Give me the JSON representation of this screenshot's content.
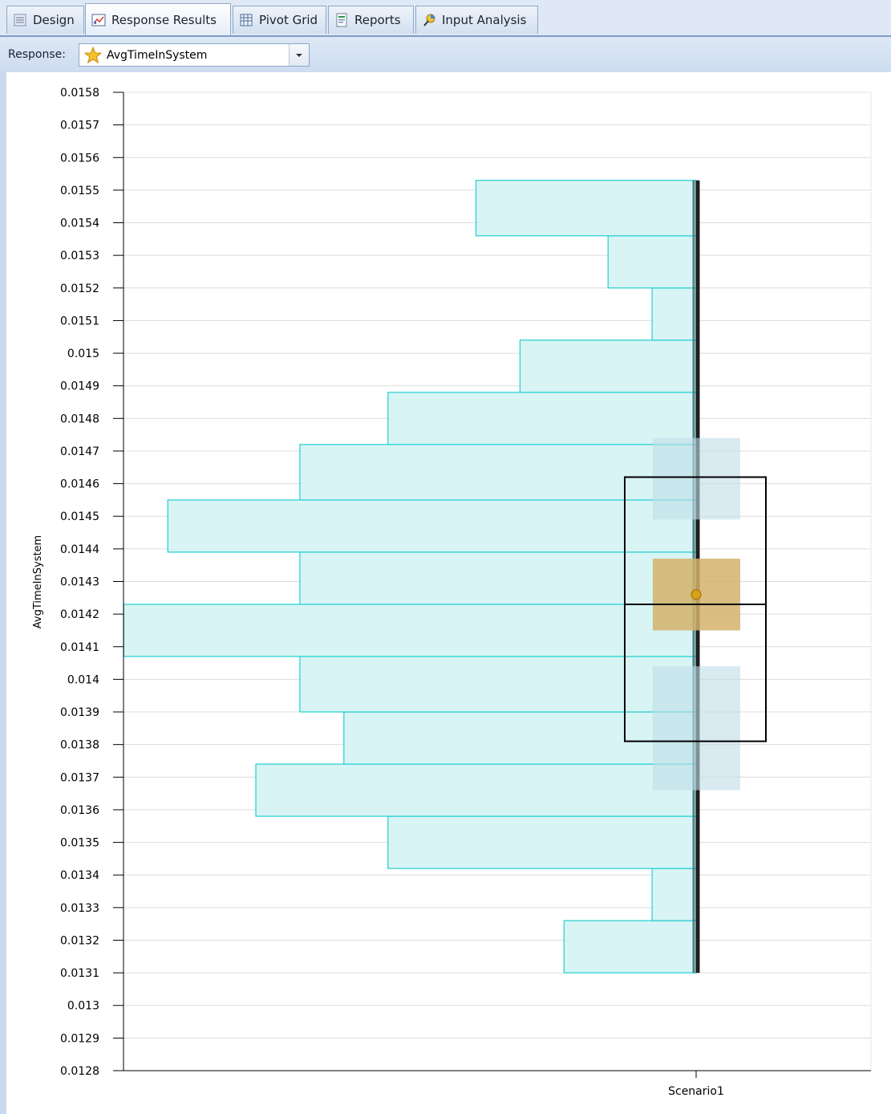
{
  "tabs": [
    {
      "label": "Design",
      "icon": "design-icon"
    },
    {
      "label": "Response Results",
      "icon": "response-results-icon",
      "active": true
    },
    {
      "label": "Pivot Grid",
      "icon": "pivot-grid-icon"
    },
    {
      "label": "Reports",
      "icon": "reports-icon"
    },
    {
      "label": "Input Analysis",
      "icon": "input-analysis-icon"
    }
  ],
  "toolbar": {
    "response_label": "Response:",
    "response_value": "AvgTimeInSystem",
    "response_icon": "star-icon"
  },
  "colors": {
    "histogram_fill": "#d4f3f3",
    "histogram_stroke": "#22cfd4",
    "confidence_interval": "#bfdde8",
    "median_ci": "#d4b26a",
    "whisker": "#1e1e1e",
    "box": "#000000"
  },
  "chart_data": {
    "type": "smore",
    "title": "",
    "ylabel": "AvgTimeInSystem",
    "xlabel": "",
    "categories": [
      "Scenario1"
    ],
    "ylim": [
      0.0128,
      0.0158
    ],
    "yticks": [
      "0.0158",
      "0.0157",
      "0.0156",
      "0.0155",
      "0.0154",
      "0.0153",
      "0.0152",
      "0.0151",
      "0.015",
      "0.0149",
      "0.0148",
      "0.0147",
      "0.0146",
      "0.0145",
      "0.0144",
      "0.0143",
      "0.0142",
      "0.0141",
      "0.014",
      "0.0139",
      "0.0138",
      "0.0137",
      "0.0136",
      "0.0135",
      "0.0134",
      "0.0133",
      "0.0132",
      "0.0131",
      "0.013",
      "0.0129",
      "0.0128"
    ],
    "grid": true,
    "histogram": [
      {
        "low": 0.0131,
        "high": 0.01326,
        "count": 1.5
      },
      {
        "low": 0.01326,
        "high": 0.01342,
        "count": 0.5
      },
      {
        "low": 0.01342,
        "high": 0.01358,
        "count": 3.5
      },
      {
        "low": 0.01358,
        "high": 0.01374,
        "count": 5.0
      },
      {
        "low": 0.01374,
        "high": 0.0139,
        "count": 4.0
      },
      {
        "low": 0.0139,
        "high": 0.01407,
        "count": 4.5
      },
      {
        "low": 0.01407,
        "high": 0.01423,
        "count": 6.5
      },
      {
        "low": 0.01423,
        "high": 0.01439,
        "count": 4.5
      },
      {
        "low": 0.01439,
        "high": 0.01455,
        "count": 6.0
      },
      {
        "low": 0.01455,
        "high": 0.01472,
        "count": 4.5
      },
      {
        "low": 0.01472,
        "high": 0.01488,
        "count": 3.5
      },
      {
        "low": 0.01488,
        "high": 0.01504,
        "count": 2.0
      },
      {
        "low": 0.01504,
        "high": 0.0152,
        "count": 0.5
      },
      {
        "low": 0.0152,
        "high": 0.01536,
        "count": 1.0
      },
      {
        "low": 0.01536,
        "high": 0.01553,
        "count": 2.5
      }
    ],
    "min": 0.0131,
    "max": 0.01553,
    "lower_percentile": 0.01381,
    "median": 0.01423,
    "upper_percentile": 0.01462,
    "mean": 0.01426,
    "mean_ci": [
      0.01415,
      0.01437
    ],
    "lower_percentile_ci": [
      0.01366,
      0.01404
    ],
    "upper_percentile_ci": [
      0.01449,
      0.01474
    ]
  }
}
